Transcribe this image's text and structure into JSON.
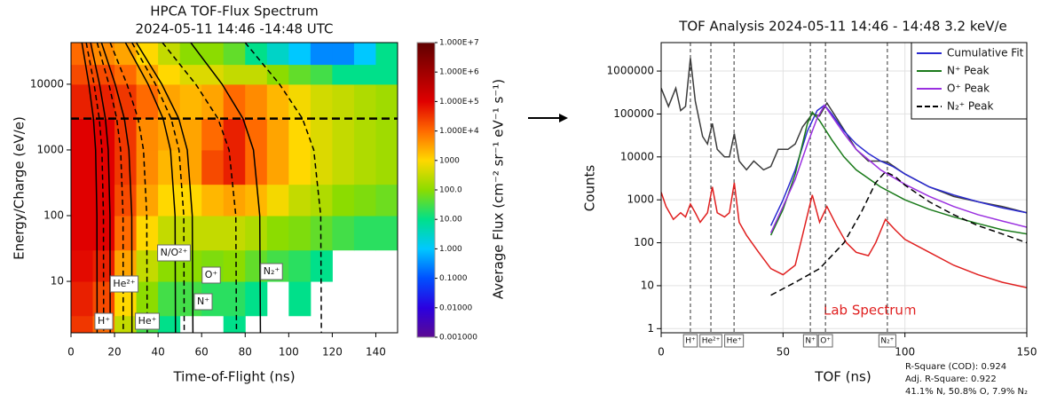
{
  "chart_data": [
    {
      "type": "heatmap",
      "title": "HPCA TOF-Flux Spectrum",
      "subtitle": "2024-05-11 14:46 -14:48 UTC",
      "x_label": "Time-of-Flight (ns)",
      "y_label": "Energy/Charge (eV/e)",
      "xlim": [
        0,
        150
      ],
      "xticks": [
        0,
        20,
        40,
        60,
        80,
        100,
        120,
        140
      ],
      "ylim": [
        1.65,
        43000
      ],
      "yticks": [
        10,
        100,
        1000,
        10000
      ],
      "y_log": true,
      "x_bins": [
        0,
        10,
        20,
        30,
        40,
        50,
        60,
        70,
        80,
        90,
        100,
        110,
        120,
        130,
        140,
        150
      ],
      "y_bins": [
        1.65,
        3,
        10,
        30,
        100,
        300,
        1000,
        3000,
        10000,
        20000,
        43000
      ],
      "values": [
        [
          30000,
          10000,
          300,
          30,
          10,
          null,
          null,
          10,
          null,
          null,
          null,
          null,
          null,
          null,
          null
        ],
        [
          50000,
          20000,
          1000,
          100,
          30,
          30,
          20,
          20,
          10,
          null,
          10,
          null,
          null,
          null,
          null
        ],
        [
          80000,
          50000,
          3000,
          300,
          100,
          100,
          80,
          100,
          50,
          30,
          20,
          10,
          null,
          null,
          null
        ],
        [
          100000,
          100000,
          10000,
          1000,
          300,
          300,
          300,
          300,
          200,
          100,
          80,
          50,
          30,
          20,
          20
        ],
        [
          100000,
          100000,
          20000,
          3000,
          1000,
          1000,
          2000,
          3000,
          2000,
          800,
          300,
          200,
          100,
          80,
          60
        ],
        [
          100000,
          100000,
          30000,
          5000,
          2000,
          3000,
          20000,
          50000,
          10000,
          3000,
          1000,
          500,
          300,
          200,
          150
        ],
        [
          100000,
          100000,
          30000,
          5000,
          3000,
          3000,
          10000,
          50000,
          10000,
          3000,
          1000,
          500,
          300,
          200,
          150
        ],
        [
          50000,
          50000,
          30000,
          10000,
          3000,
          2000,
          3000,
          10000,
          5000,
          2000,
          800,
          400,
          300,
          200,
          150
        ],
        [
          20000,
          20000,
          10000,
          3000,
          1000,
          500,
          500,
          300,
          300,
          100,
          50,
          30,
          10,
          10,
          10
        ],
        [
          10000,
          5000,
          3000,
          1000,
          300,
          100,
          100,
          50,
          10,
          3,
          1,
          0.3,
          0.3,
          1,
          10
        ]
      ],
      "curves": [
        {
          "style": "solid",
          "x": [
            5,
            8.2,
            10.3,
            11.3,
            11.9,
            12
          ],
          "y": [
            43000,
            10000,
            3000,
            1000,
            100,
            1.65
          ]
        },
        {
          "style": "solid",
          "x": [
            9,
            13.1,
            15.8,
            17.1,
            17.9,
            18
          ],
          "y": [
            43000,
            10000,
            3000,
            1000,
            100,
            1.65
          ]
        },
        {
          "style": "solid",
          "x": [
            14,
            20.3,
            24.5,
            26.6,
            27.9,
            28
          ],
          "y": [
            43000,
            10000,
            3000,
            1000,
            100,
            1.65
          ]
        },
        {
          "style": "solid",
          "x": [
            25,
            35.4,
            42.3,
            45.7,
            47.8,
            48
          ],
          "y": [
            43000,
            10000,
            3000,
            1000,
            100,
            1.65
          ]
        },
        {
          "style": "solid",
          "x": [
            30,
            41.7,
            49.5,
            53.4,
            55.7,
            56
          ],
          "y": [
            43000,
            10000,
            3000,
            1000,
            100,
            1.65
          ]
        },
        {
          "style": "solid",
          "x": [
            55,
            69.4,
            79,
            83.8,
            86.7,
            87
          ],
          "y": [
            43000,
            10000,
            3000,
            1000,
            100,
            1.65
          ]
        },
        {
          "style": "dashed",
          "x": [
            7,
            10.6,
            13,
            14.2,
            14.9,
            15
          ],
          "y": [
            43000,
            10000,
            3000,
            1000,
            100,
            1.65
          ]
        },
        {
          "style": "dashed",
          "x": [
            12,
            17.4,
            21,
            22.8,
            23.9,
            24
          ],
          "y": [
            43000,
            10000,
            3000,
            1000,
            100,
            1.65
          ]
        },
        {
          "style": "dashed",
          "x": [
            18,
            25.7,
            30.8,
            33.3,
            34.8,
            35
          ],
          "y": [
            43000,
            10000,
            3000,
            1000,
            100,
            1.65
          ]
        },
        {
          "style": "dashed",
          "x": [
            28,
            38.8,
            46,
            49.6,
            51.8,
            52
          ],
          "y": [
            43000,
            10000,
            3000,
            1000,
            100,
            1.65
          ]
        },
        {
          "style": "dashed",
          "x": [
            42,
            57.3,
            67.5,
            72.6,
            75.7,
            76
          ],
          "y": [
            43000,
            10000,
            3000,
            1000,
            100,
            1.65
          ]
        },
        {
          "style": "dashed",
          "x": [
            80,
            95.8,
            106.3,
            111.5,
            114.7,
            115
          ],
          "y": [
            43000,
            10000,
            3000,
            1000,
            100,
            1.65
          ]
        }
      ],
      "reference_line": 3000,
      "labels": [
        "H⁺",
        "He²⁺",
        "He⁺",
        "N/O²⁺",
        "N⁺",
        "O⁺",
        "N₂⁺"
      ],
      "colorbar": {
        "label": "Average Flux (cm⁻² sr⁻¹ eV⁻¹ s⁻¹)",
        "lim": [
          0.001,
          10000000
        ],
        "ticks": [
          {
            "value": 10000000,
            "label": "1.000E+7"
          },
          {
            "value": 1000000,
            "label": "1.000E+6"
          },
          {
            "value": 100000,
            "label": "1.000E+5"
          },
          {
            "value": 10000,
            "label": "1.000E+4"
          },
          1000,
          {
            "value": 100,
            "label": "100.0"
          },
          {
            "value": 10,
            "label": "10.00"
          },
          {
            "value": 1,
            "label": "1.000"
          },
          {
            "value": 0.1,
            "label": "0.1000"
          },
          {
            "value": 0.01,
            "label": "0.01000"
          },
          {
            "value": 0.001,
            "label": "0.001000"
          }
        ],
        "colors": [
          "#5b0a91",
          "#2b00e0",
          "#0050ff",
          "#00c8ff",
          "#00e08a",
          "#8cdc00",
          "#ffd800",
          "#ff6a00",
          "#e00000",
          "#a00000",
          "#600000"
        ]
      }
    },
    {
      "type": "line",
      "title": "TOF Analysis 2024-05-11 14:46 - 14:48 3.2 keV/e",
      "x_label": "TOF (ns)",
      "y_label": "Counts",
      "xlim": [
        0,
        150
      ],
      "xticks": [
        0,
        50,
        100,
        150
      ],
      "ylim": [
        0.8,
        4600000
      ],
      "yticks": [
        1,
        10,
        100,
        1000,
        10000,
        100000,
        1000000
      ],
      "y_log": true,
      "grid": true,
      "legend": "upper-right",
      "series": [
        {
          "color": "#3c3c3c",
          "x": [
            0,
            3,
            6,
            8,
            10,
            12,
            14,
            17,
            19,
            21,
            23,
            26,
            28,
            30,
            32,
            35,
            38,
            42,
            45,
            48,
            52,
            55,
            58,
            62,
            65,
            68,
            72,
            76,
            80,
            85,
            90,
            93,
            100,
            110,
            120,
            130,
            140,
            150
          ],
          "values": [
            400000,
            150000,
            400000,
            120000,
            150000,
            2000000,
            200000,
            30000,
            20000,
            60000,
            15000,
            10000,
            10000,
            35000,
            8000,
            5000,
            8000,
            5000,
            6000,
            15000,
            15000,
            20000,
            50000,
            100000,
            90000,
            180000,
            80000,
            35000,
            15000,
            8000,
            8000,
            7500,
            4000,
            2000,
            1200,
            900,
            700,
            500
          ]
        },
        {
          "color": "#e02020",
          "x": [
            0,
            2,
            5,
            8,
            10,
            12,
            14,
            16,
            19,
            21,
            23,
            26,
            28,
            30,
            32,
            35,
            40,
            45,
            50,
            55,
            58,
            62,
            65,
            68,
            72,
            76,
            80,
            85,
            88,
            92,
            96,
            100,
            110,
            120,
            130,
            140,
            150
          ],
          "values": [
            1500,
            700,
            350,
            500,
            400,
            800,
            500,
            300,
            500,
            2000,
            500,
            400,
            500,
            2500,
            300,
            150,
            60,
            25,
            18,
            30,
            150,
            1300,
            300,
            700,
            250,
            100,
            60,
            50,
            100,
            350,
            200,
            120,
            60,
            30,
            18,
            12,
            9
          ]
        },
        {
          "name": "Cumulative Fit",
          "color": "#2a2ad0",
          "x": [
            45,
            50,
            55,
            60,
            64,
            67,
            70,
            75,
            80,
            85,
            90,
            95,
            100,
            110,
            120,
            130,
            140,
            150
          ],
          "values": [
            250,
            1000,
            5000,
            40000,
            120000,
            160000,
            100000,
            40000,
            20000,
            12000,
            8000,
            6000,
            4000,
            2000,
            1300,
            900,
            650,
            500
          ]
        },
        {
          "name": "N⁺ Peak",
          "color": "#1a7a1a",
          "x": [
            45,
            50,
            55,
            60,
            62,
            65,
            70,
            75,
            80,
            90,
            100,
            110,
            120,
            130,
            140,
            150
          ],
          "values": [
            150,
            600,
            4000,
            60000,
            110000,
            70000,
            25000,
            10000,
            5000,
            2000,
            1000,
            600,
            400,
            280,
            200,
            160
          ]
        },
        {
          "name": "O⁺ Peak",
          "color": "#9a30e0",
          "x": [
            45,
            50,
            55,
            60,
            64,
            67,
            70,
            75,
            80,
            90,
            100,
            110,
            120,
            130,
            140,
            150
          ],
          "values": [
            170,
            700,
            3000,
            20000,
            80000,
            160000,
            90000,
            35000,
            15000,
            5000,
            2300,
            1200,
            700,
            450,
            320,
            230
          ]
        },
        {
          "name": "N₂⁺ Peak",
          "color": "#000000",
          "dashed": true,
          "x": [
            45,
            55,
            65,
            75,
            82,
            88,
            92,
            96,
            100,
            110,
            120,
            130,
            140,
            150
          ],
          "values": [
            6,
            12,
            25,
            100,
            500,
            2500,
            4500,
            3500,
            2200,
            900,
            450,
            250,
            160,
            100
          ]
        }
      ],
      "markers": [
        {
          "label": "H⁺",
          "x": 12
        },
        {
          "label": "He²⁺",
          "x": 20.4
        },
        {
          "label": "He⁺",
          "x": 29.9
        },
        {
          "label": "N⁺",
          "x": 61.2
        },
        {
          "label": "O⁺",
          "x": 67.4
        },
        {
          "label": "N₂⁺",
          "x": 92.8
        }
      ],
      "annotation": "Lab Spectrum",
      "stats": [
        "R-Square (COD): 0.924",
        "Adj. R-Square:  0.922",
        "41.1% N, 50.8% O, 7.9% N₂"
      ]
    }
  ]
}
